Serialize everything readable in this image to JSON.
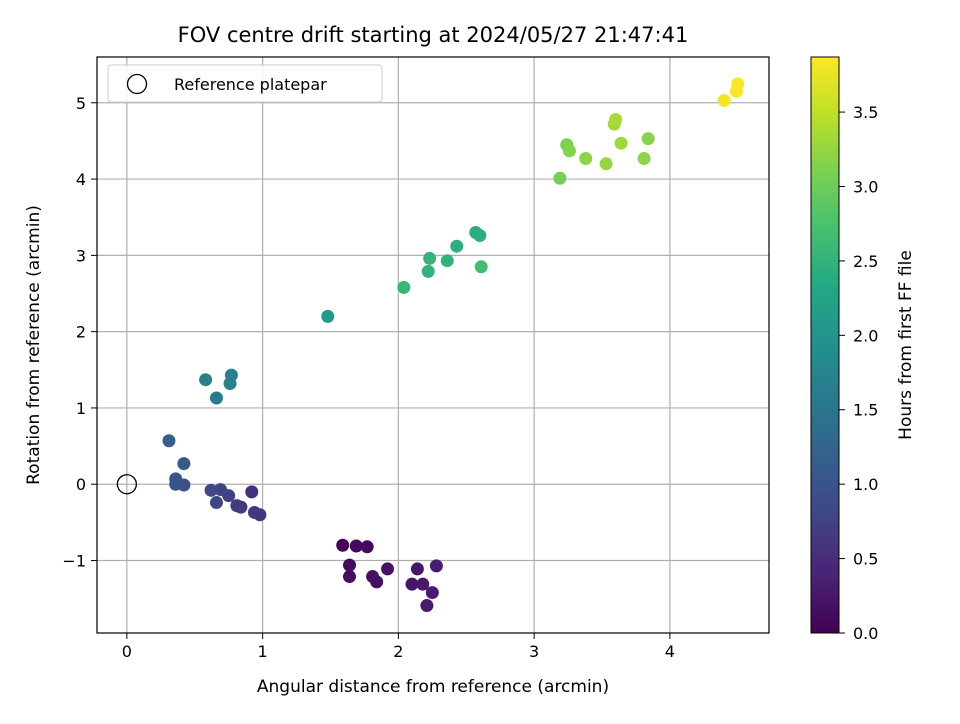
{
  "chart_data": {
    "type": "scatter",
    "title": "FOV centre drift starting at 2024/05/27 21:47:41",
    "xlabel": "Angular distance from reference (arcmin)",
    "ylabel": "Rotation from reference (arcmin)",
    "xlim": [
      -0.22,
      4.73
    ],
    "ylim": [
      -1.95,
      5.6
    ],
    "xticks": [
      0,
      1,
      2,
      3,
      4
    ],
    "yticks": [
      -1,
      0,
      1,
      2,
      3,
      4,
      5
    ],
    "grid": true,
    "legend": {
      "placement": "upper-left",
      "entries": [
        {
          "label": "Reference platepar",
          "marker": "hollow-circle",
          "x": 0,
          "y": 0
        }
      ]
    },
    "colorbar": {
      "label": "Hours from first FF file",
      "colormap": "viridis",
      "range": [
        0.0,
        3.87
      ],
      "ticks": [
        "0.0",
        "0.5",
        "1.0",
        "1.5",
        "2.0",
        "2.5",
        "3.0",
        "3.5"
      ]
    },
    "points": [
      {
        "x": 1.59,
        "y": -0.8,
        "h": 0.05
      },
      {
        "x": 1.69,
        "y": -0.81,
        "h": 0.08
      },
      {
        "x": 1.77,
        "y": -0.82,
        "h": 0.1
      },
      {
        "x": 1.64,
        "y": -1.06,
        "h": 0.12
      },
      {
        "x": 1.64,
        "y": -1.21,
        "h": 0.14
      },
      {
        "x": 1.81,
        "y": -1.21,
        "h": 0.16
      },
      {
        "x": 1.84,
        "y": -1.28,
        "h": 0.18
      },
      {
        "x": 1.92,
        "y": -1.11,
        "h": 0.2
      },
      {
        "x": 2.1,
        "y": -1.31,
        "h": 0.22
      },
      {
        "x": 2.14,
        "y": -1.11,
        "h": 0.24
      },
      {
        "x": 2.18,
        "y": -1.31,
        "h": 0.26
      },
      {
        "x": 2.21,
        "y": -1.59,
        "h": 0.28
      },
      {
        "x": 2.25,
        "y": -1.42,
        "h": 0.3
      },
      {
        "x": 2.28,
        "y": -1.07,
        "h": 0.32
      },
      {
        "x": 0.92,
        "y": -0.1,
        "h": 0.55
      },
      {
        "x": 0.98,
        "y": -0.4,
        "h": 0.58
      },
      {
        "x": 0.94,
        "y": -0.37,
        "h": 0.6
      },
      {
        "x": 0.84,
        "y": -0.3,
        "h": 0.65
      },
      {
        "x": 0.81,
        "y": -0.28,
        "h": 0.68
      },
      {
        "x": 0.75,
        "y": -0.15,
        "h": 0.72
      },
      {
        "x": 0.69,
        "y": -0.07,
        "h": 0.76
      },
      {
        "x": 0.66,
        "y": -0.24,
        "h": 0.8
      },
      {
        "x": 0.62,
        "y": -0.08,
        "h": 0.85
      },
      {
        "x": 0.42,
        "y": -0.01,
        "h": 0.95
      },
      {
        "x": 0.36,
        "y": 0.0,
        "h": 1.0
      },
      {
        "x": 0.36,
        "y": 0.07,
        "h": 1.03
      },
      {
        "x": 0.42,
        "y": 0.27,
        "h": 1.08
      },
      {
        "x": 0.31,
        "y": 0.57,
        "h": 1.15
      },
      {
        "x": 0.66,
        "y": 1.13,
        "h": 1.6
      },
      {
        "x": 0.58,
        "y": 1.37,
        "h": 1.65
      },
      {
        "x": 0.76,
        "y": 1.32,
        "h": 1.7
      },
      {
        "x": 0.77,
        "y": 1.43,
        "h": 1.72
      },
      {
        "x": 1.48,
        "y": 2.2,
        "h": 2.1
      },
      {
        "x": 2.04,
        "y": 2.58,
        "h": 2.58
      },
      {
        "x": 2.22,
        "y": 2.79,
        "h": 2.5
      },
      {
        "x": 2.23,
        "y": 2.96,
        "h": 2.52
      },
      {
        "x": 2.36,
        "y": 2.93,
        "h": 2.5
      },
      {
        "x": 2.43,
        "y": 3.12,
        "h": 2.45
      },
      {
        "x": 2.57,
        "y": 3.3,
        "h": 2.42
      },
      {
        "x": 2.6,
        "y": 3.26,
        "h": 2.44
      },
      {
        "x": 2.61,
        "y": 2.85,
        "h": 2.68
      },
      {
        "x": 3.19,
        "y": 4.01,
        "h": 3.05
      },
      {
        "x": 3.24,
        "y": 4.45,
        "h": 3.1
      },
      {
        "x": 3.26,
        "y": 4.37,
        "h": 3.15
      },
      {
        "x": 3.38,
        "y": 4.27,
        "h": 3.2
      },
      {
        "x": 3.53,
        "y": 4.2,
        "h": 3.25
      },
      {
        "x": 3.59,
        "y": 4.72,
        "h": 3.32
      },
      {
        "x": 3.6,
        "y": 4.78,
        "h": 3.35
      },
      {
        "x": 3.64,
        "y": 4.47,
        "h": 3.3
      },
      {
        "x": 3.81,
        "y": 4.27,
        "h": 3.2
      },
      {
        "x": 3.84,
        "y": 4.53,
        "h": 3.18
      },
      {
        "x": 4.4,
        "y": 5.03,
        "h": 3.82
      },
      {
        "x": 4.49,
        "y": 5.15,
        "h": 3.84
      },
      {
        "x": 4.5,
        "y": 5.25,
        "h": 3.86
      }
    ]
  }
}
